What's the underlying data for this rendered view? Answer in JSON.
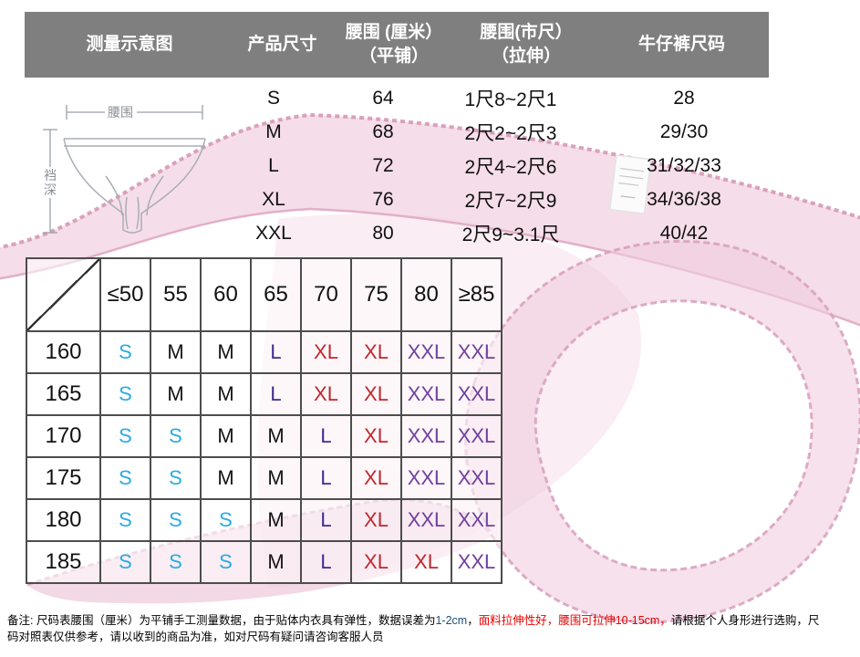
{
  "header_bar": {
    "bg_color": "#7f7f7f",
    "text_color": "#ffffff",
    "columns": [
      {
        "label": "测量示意图"
      },
      {
        "label": "产品尺寸"
      },
      {
        "label": "腰围 (厘米）\n（平铺）"
      },
      {
        "label": "腰围(市尺）\n（拉伸）"
      },
      {
        "label": "牛仔裤尺码"
      }
    ]
  },
  "diagram": {
    "waist_label": "腰围",
    "crotch_label_chars": [
      "裆",
      "深"
    ]
  },
  "size_table": {
    "rows": [
      {
        "size": "S",
        "waist_flat_cm": "64",
        "waist_stretch_chi": "1尺8~2尺1",
        "jeans_size": "28"
      },
      {
        "size": "M",
        "waist_flat_cm": "68",
        "waist_stretch_chi": "2尺2~2尺3",
        "jeans_size": "29/30"
      },
      {
        "size": "L",
        "waist_flat_cm": "72",
        "waist_stretch_chi": "2尺4~2尺6",
        "jeans_size": "31/32/33"
      },
      {
        "size": "XL",
        "waist_flat_cm": "76",
        "waist_stretch_chi": "2尺7~2尺9",
        "jeans_size": "34/36/38"
      },
      {
        "size": "XXL",
        "waist_flat_cm": "80",
        "waist_stretch_chi": "2尺9~3.1尺",
        "jeans_size": "40/42"
      }
    ]
  },
  "matrix": {
    "col_headers": [
      "≤50",
      "55",
      "60",
      "65",
      "70",
      "75",
      "80",
      "≥85"
    ],
    "rows": [
      {
        "label": "160",
        "cells": [
          "S",
          "M",
          "M",
          "L",
          "XL",
          "XL",
          "XXL",
          "XXL"
        ]
      },
      {
        "label": "165",
        "cells": [
          "S",
          "M",
          "M",
          "L",
          "XL",
          "XL",
          "XXL",
          "XXL"
        ]
      },
      {
        "label": "170",
        "cells": [
          "S",
          "S",
          "M",
          "M",
          "L",
          "XL",
          "XXL",
          "XXL"
        ]
      },
      {
        "label": "175",
        "cells": [
          "S",
          "S",
          "M",
          "M",
          "L",
          "XL",
          "XXL",
          "XXL"
        ]
      },
      {
        "label": "180",
        "cells": [
          "S",
          "S",
          "S",
          "M",
          "L",
          "XL",
          "XXL",
          "XXL"
        ]
      },
      {
        "label": "185",
        "cells": [
          "S",
          "S",
          "S",
          "M",
          "L",
          "XL",
          "XL",
          "XXL"
        ]
      }
    ],
    "size_colors": {
      "S": "#29abe2",
      "M": "#141414",
      "L": "#3b2d8e",
      "XL": "#c1272d",
      "XXL": "#7040a0"
    },
    "border_color": "#4d4d4d"
  },
  "note": {
    "segments": [
      {
        "text": "备注: 尺码表腰围（厘米）为平铺手工测量数据，由于贴体内衣具有弹性，数据误差为",
        "color": "#000000"
      },
      {
        "text": "1-2cm",
        "color": "#1f4e79"
      },
      {
        "text": "，",
        "color": "#000000"
      },
      {
        "text": "面料拉伸性好，腰围可拉伸10-15cm，",
        "color": "#e60000"
      },
      {
        "text": "请根据个人身形进行选购，尺码对照表仅供参考，请以收到的商品为准，如对尺码有疑问请咨询客服人员",
        "color": "#000000"
      }
    ]
  },
  "photo": {
    "colors": {
      "fill_light": "#f3d5e3",
      "fill_mid": "#eec8da",
      "wash": "#f6dfe9",
      "edge": "#d698b6",
      "inner_edge": "#e2afc7",
      "label_bg": "#fbfbfb"
    }
  }
}
